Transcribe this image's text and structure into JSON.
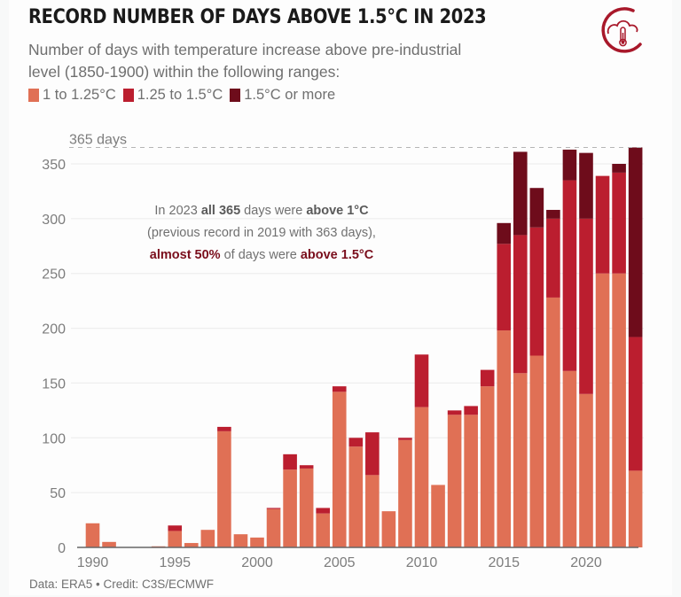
{
  "header": {
    "title": "RECORD NUMBER OF DAYS ABOVE 1.5°C IN 2023",
    "subtitle": "Number of days with temperature increase above pre-industrial level (1850-1900) within the following ranges:",
    "logo_icon": "cloud-thermometer-icon"
  },
  "legend": [
    {
      "label": "1 to 1.25°C",
      "color": "#e07055"
    },
    {
      "label": "1.25 to 1.5°C",
      "color": "#bb1e2f"
    },
    {
      "label": "1.5°C or more",
      "color": "#6e0c1b"
    }
  ],
  "annotation": {
    "line1_a": "In 2023 ",
    "line1_b": "all 365",
    "line1_c": " days were ",
    "line1_d": "above 1°C",
    "line2": "(previous record in 2019 with 363 days),",
    "line3_a": "almost 50%",
    "line3_b": " of days were ",
    "line3_c": "above 1.5°C"
  },
  "reference_line_label": "365 days",
  "source": "Data: ERA5 • Credit: C3S/ECMWF",
  "chart_data": {
    "type": "bar",
    "stacked": true,
    "title": "RECORD NUMBER OF DAYS ABOVE 1.5°C IN 2023",
    "xlabel": "",
    "ylabel": "",
    "ylim": [
      0,
      365
    ],
    "yticks": [
      0,
      50,
      100,
      150,
      200,
      250,
      300,
      350
    ],
    "xticks": [
      1990,
      1995,
      2000,
      2005,
      2010,
      2015,
      2020
    ],
    "grid": true,
    "legend_position": "top-left",
    "reference_line": {
      "value": 365,
      "label": "365 days",
      "style": "dashed"
    },
    "categories": [
      1990,
      1991,
      1992,
      1993,
      1994,
      1995,
      1996,
      1997,
      1998,
      1999,
      2000,
      2001,
      2002,
      2003,
      2004,
      2005,
      2006,
      2007,
      2008,
      2009,
      2010,
      2011,
      2012,
      2013,
      2014,
      2015,
      2016,
      2017,
      2018,
      2019,
      2020,
      2021,
      2022,
      2023
    ],
    "series": [
      {
        "name": "1 to 1.25°C",
        "color": "#e07055",
        "values": [
          22,
          5,
          0,
          0,
          1,
          15,
          4,
          16,
          106,
          12,
          9,
          35,
          71,
          72,
          31,
          142,
          92,
          66,
          33,
          98,
          128,
          57,
          121,
          121,
          147,
          198,
          159,
          175,
          228,
          161,
          140,
          250,
          250,
          70
        ]
      },
      {
        "name": "1.25 to 1.5°C",
        "color": "#bb1e2f",
        "values": [
          0,
          0,
          0,
          0,
          0,
          5,
          0,
          0,
          4,
          0,
          0,
          1,
          14,
          3,
          5,
          5,
          8,
          39,
          0,
          2,
          48,
          0,
          4,
          8,
          15,
          79,
          126,
          117,
          72,
          174,
          160,
          89,
          92,
          122
        ]
      },
      {
        "name": "1.5°C or more",
        "color": "#6e0c1b",
        "values": [
          0,
          0,
          0,
          0,
          0,
          0,
          0,
          0,
          0,
          0,
          0,
          0,
          0,
          0,
          0,
          0,
          0,
          0,
          0,
          0,
          0,
          0,
          0,
          0,
          0,
          19,
          76,
          36,
          8,
          28,
          60,
          0,
          8,
          173
        ]
      }
    ]
  }
}
